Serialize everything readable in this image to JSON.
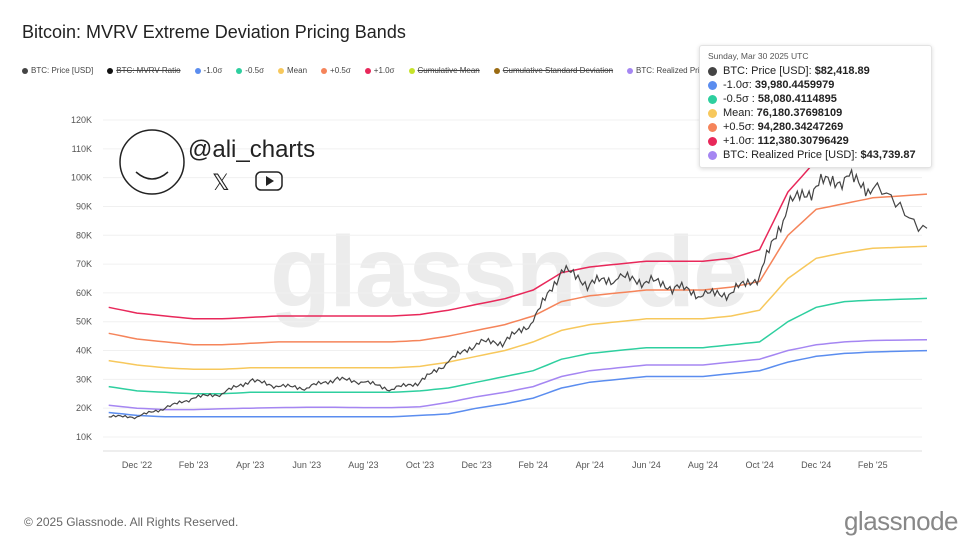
{
  "title": "Bitcoin: MVRV Extreme Deviation Pricing Bands",
  "legend": [
    {
      "label": "BTC: Price [USD]",
      "color": "#444444",
      "strike": false
    },
    {
      "label": "BTC: MVRV Ratio",
      "color": "#111111",
      "strike": true
    },
    {
      "label": "-1.0σ",
      "color": "#5b8def",
      "strike": false
    },
    {
      "label": "-0.5σ",
      "color": "#2ecf9f",
      "strike": false
    },
    {
      "label": "Mean",
      "color": "#f7c85c",
      "strike": false
    },
    {
      "label": "+0.5σ",
      "color": "#f5845a",
      "strike": false
    },
    {
      "label": "+1.0σ",
      "color": "#e8285a",
      "strike": false
    },
    {
      "label": "Cumulative Mean",
      "color": "#c6e32a",
      "strike": true
    },
    {
      "label": "Cumulative Standard Deviation",
      "color": "#9a6b12",
      "strike": true
    },
    {
      "label": "BTC: Realized Price [USD]",
      "color": "#a586f2",
      "strike": false
    }
  ],
  "tooltip": {
    "date": "Sunday, Mar 30 2025 UTC",
    "rows": [
      {
        "label": "BTC: Price [USD]: ",
        "value": "$82,418.89",
        "color": "#444444"
      },
      {
        "label": "-1.0σ: ",
        "value": "39,980.4459979",
        "color": "#5b8def"
      },
      {
        "label": "-0.5σ : ",
        "value": "58,080.4114895",
        "color": "#2ecf9f"
      },
      {
        "label": "Mean: ",
        "value": "76,180.37698109",
        "color": "#f7c85c"
      },
      {
        "label": "+0.5σ: ",
        "value": "94,280.34247269",
        "color": "#f5845a"
      },
      {
        "label": "+1.0σ: ",
        "value": "112,380.30796429",
        "color": "#e8285a"
      },
      {
        "label": "BTC: Realized Price [USD]: ",
        "value": "$43,739.87",
        "color": "#a586f2"
      }
    ]
  },
  "watermark": {
    "handle": "@ali_charts",
    "logo": "glassnode",
    "icons": [
      "x-icon",
      "youtube-icon"
    ]
  },
  "footer": {
    "copyright": "© 2025 Glassnode. All Rights Reserved.",
    "brand": "glassnode"
  },
  "chart_data": {
    "type": "line",
    "title": "Bitcoin: MVRV Extreme Deviation Pricing Bands",
    "yscale": "linear",
    "ylim": [
      10000,
      120000
    ],
    "yticks": [
      "10K",
      "20K",
      "30K",
      "40K",
      "50K",
      "60K",
      "70K",
      "80K",
      "90K",
      "100K",
      "110K",
      "120K"
    ],
    "xticks": [
      "Dec '22",
      "Feb '23",
      "Apr '23",
      "Jun '23",
      "Aug '23",
      "Oct '23",
      "Dec '23",
      "Feb '24",
      "Apr '24",
      "Jun '24",
      "Aug '24",
      "Oct '24",
      "Dec '24",
      "Feb '25"
    ],
    "grid": "horizontal",
    "x": [
      "2022-11",
      "2022-12",
      "2023-01",
      "2023-02",
      "2023-03",
      "2023-04",
      "2023-05",
      "2023-06",
      "2023-07",
      "2023-08",
      "2023-09",
      "2023-10",
      "2023-11",
      "2023-12",
      "2024-01",
      "2024-02",
      "2024-03",
      "2024-04",
      "2024-05",
      "2024-06",
      "2024-07",
      "2024-08",
      "2024-09",
      "2024-10",
      "2024-11",
      "2024-12",
      "2025-01",
      "2025-02",
      "2025-03-30"
    ],
    "series": [
      {
        "name": "+1.0σ",
        "color": "#e8285a",
        "values": [
          55000,
          53000,
          52000,
          51000,
          51000,
          51500,
          52000,
          52000,
          52000,
          52000,
          52000,
          52500,
          54000,
          56000,
          58000,
          61000,
          67000,
          69000,
          70000,
          71000,
          71000,
          71000,
          72000,
          75000,
          95000,
          106000,
          109000,
          111000,
          112380
        ]
      },
      {
        "name": "+0.5σ",
        "color": "#f5845a",
        "values": [
          46000,
          44000,
          43000,
          42000,
          42000,
          42500,
          43000,
          43000,
          43000,
          43000,
          43000,
          43500,
          45000,
          47000,
          49000,
          52000,
          57000,
          59000,
          60000,
          61000,
          61000,
          61000,
          62000,
          64000,
          80000,
          89000,
          91000,
          93000,
          94280
        ]
      },
      {
        "name": "Mean",
        "color": "#f7c85c",
        "values": [
          36500,
          35000,
          34000,
          33500,
          33500,
          34000,
          34000,
          34000,
          34000,
          34000,
          34000,
          34500,
          36000,
          38000,
          40000,
          43000,
          47000,
          49000,
          50000,
          51000,
          51000,
          51000,
          52000,
          54000,
          65000,
          72000,
          74000,
          75500,
          76180
        ]
      },
      {
        "name": "-0.5σ",
        "color": "#2ecf9f",
        "values": [
          27500,
          26000,
          25500,
          25000,
          25000,
          25500,
          25500,
          25500,
          25500,
          25500,
          25500,
          26000,
          27000,
          29000,
          31000,
          33000,
          37000,
          39000,
          40000,
          41000,
          41000,
          41000,
          42000,
          43000,
          50000,
          55000,
          57000,
          57500,
          58080
        ]
      },
      {
        "name": "BTC: Realized Price [USD]",
        "color": "#a586f2",
        "values": [
          21000,
          20000,
          19500,
          19500,
          19800,
          20000,
          20200,
          20300,
          20300,
          20200,
          20200,
          20500,
          22000,
          24000,
          25500,
          27500,
          31000,
          33000,
          34000,
          35000,
          35000,
          35000,
          36000,
          37000,
          40000,
          42000,
          43000,
          43500,
          43740
        ]
      },
      {
        "name": "-1.0σ",
        "color": "#5b8def",
        "values": [
          18500,
          17500,
          17000,
          17000,
          17000,
          17000,
          17000,
          17000,
          17000,
          17000,
          17000,
          17500,
          18000,
          20000,
          21500,
          23500,
          27000,
          29000,
          30000,
          31000,
          31000,
          31000,
          32000,
          33000,
          36000,
          38000,
          39000,
          39500,
          39980
        ]
      },
      {
        "name": "BTC: Price [USD]",
        "color": "#444444",
        "values": [
          17000,
          17000,
          20000,
          23500,
          25000,
          29500,
          27500,
          27000,
          30000,
          29000,
          26500,
          29000,
          36000,
          42500,
          43000,
          50000,
          68000,
          63000,
          65000,
          64000,
          62000,
          59000,
          60000,
          66000,
          90000,
          97000,
          100000,
          96000,
          82419
        ]
      }
    ]
  }
}
